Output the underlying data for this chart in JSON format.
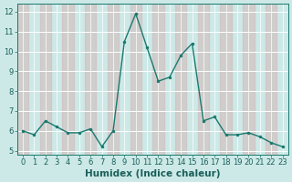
{
  "x": [
    0,
    1,
    2,
    3,
    4,
    5,
    6,
    7,
    8,
    9,
    10,
    11,
    12,
    13,
    14,
    15,
    16,
    17,
    18,
    19,
    20,
    21,
    22,
    23
  ],
  "y": [
    6.0,
    5.8,
    6.5,
    6.2,
    5.9,
    5.9,
    6.1,
    5.2,
    6.0,
    10.5,
    11.9,
    10.2,
    8.5,
    8.7,
    9.8,
    10.4,
    6.5,
    6.7,
    5.8,
    5.8,
    5.9,
    5.7,
    5.4,
    5.2
  ],
  "line_color": "#1a7a6e",
  "marker": "o",
  "markersize": 2.5,
  "linewidth": 1.0,
  "bg_color": "#cce9e7",
  "grid_color_minor": "#b8d8d6",
  "grid_color_major": "#c8a8a8",
  "xlabel": "Humidex (Indice chaleur)",
  "xlabel_fontsize": 7.5,
  "tick_fontsize": 6,
  "ylim": [
    4.8,
    12.4
  ],
  "xlim": [
    -0.5,
    23.5
  ],
  "yticks": [
    5,
    6,
    7,
    8,
    9,
    10,
    11,
    12
  ],
  "xticks": [
    0,
    1,
    2,
    3,
    4,
    5,
    6,
    7,
    8,
    9,
    10,
    11,
    12,
    13,
    14,
    15,
    16,
    17,
    18,
    19,
    20,
    21,
    22,
    23
  ],
  "col_band_color": "#d4b8b8",
  "col_bands": [
    0,
    2,
    4,
    6,
    8,
    10,
    12,
    14,
    16,
    18,
    20,
    22
  ]
}
